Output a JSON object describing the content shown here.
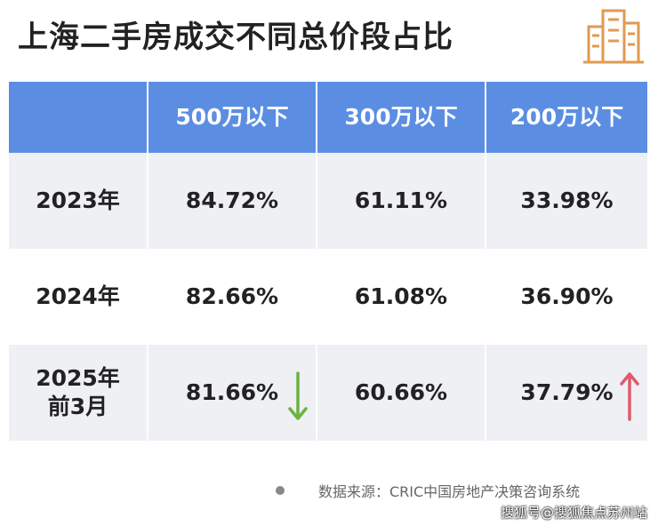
{
  "header": {
    "title": "上海二手房成交不同总价段占比"
  },
  "table": {
    "columns": [
      "500万以下",
      "300万以下",
      "200万以下"
    ],
    "rows": [
      {
        "label": [
          "2023年"
        ],
        "cells": [
          "84.72%",
          "61.11%",
          "33.98%"
        ]
      },
      {
        "label": [
          "2024年"
        ],
        "cells": [
          "82.66%",
          "61.08%",
          "36.90%"
        ]
      },
      {
        "label": [
          "2025年",
          "前3月"
        ],
        "cells": [
          "81.66%",
          "60.66%",
          "37.79%"
        ]
      }
    ]
  },
  "footer": {
    "source": "数据来源：CRIC中国房地产决策咨询系统",
    "watermark": "搜狐号@搜狐焦点苏州站"
  }
}
